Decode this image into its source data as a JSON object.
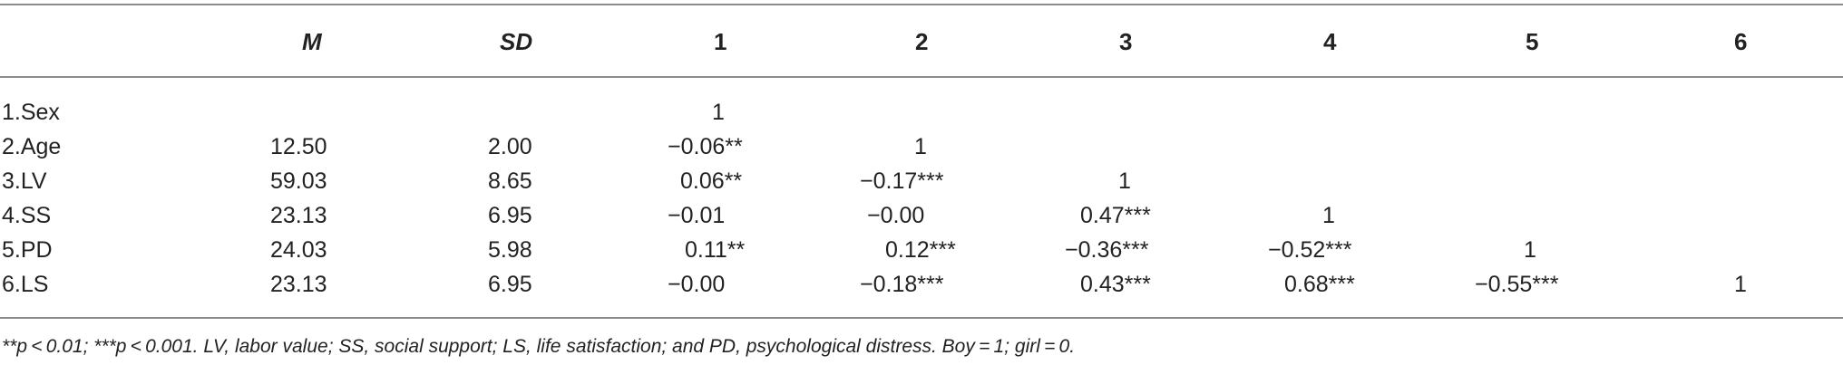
{
  "table": {
    "headers": [
      "",
      "M",
      "SD",
      "1",
      "2",
      "3",
      "4",
      "5",
      "6"
    ],
    "rows": [
      {
        "label": "1.Sex",
        "M": "",
        "SD": "",
        "c1": "1",
        "c2": "",
        "c3": "",
        "c4": "",
        "c5": "",
        "c6": ""
      },
      {
        "label": "2.Age",
        "M": "12.50",
        "SD": "2.00",
        "c1": "−0.06**",
        "c2": "1",
        "c3": "",
        "c4": "",
        "c5": "",
        "c6": ""
      },
      {
        "label": "3.LV",
        "M": "59.03",
        "SD": "8.65",
        "c1": "0.06**",
        "c2": "−0.17***",
        "c3": "1",
        "c4": "",
        "c5": "",
        "c6": ""
      },
      {
        "label": "4.SS",
        "M": "23.13",
        "SD": "6.95",
        "c1": "−0.01",
        "c2": "−0.00",
        "c3": "0.47***",
        "c4": "1",
        "c5": "",
        "c6": ""
      },
      {
        "label": "5.PD",
        "M": "24.03",
        "SD": "5.98",
        "c1": "0.11**",
        "c2": "0.12***",
        "c3": "−0.36***",
        "c4": "−0.52***",
        "c5": "1",
        "c6": ""
      },
      {
        "label": "6.LS",
        "M": "23.13",
        "SD": "6.95",
        "c1": "−0.00",
        "c2": "−0.18***",
        "c3": "0.43***",
        "c4": "0.68***",
        "c5": "−0.55***",
        "c6": "1"
      }
    ],
    "note": "**p < 0.01; ***p < 0.001. LV, labor value; SS, social support; LS, life satisfaction; and PD, psychological distress. Boy = 1; girl = 0."
  }
}
